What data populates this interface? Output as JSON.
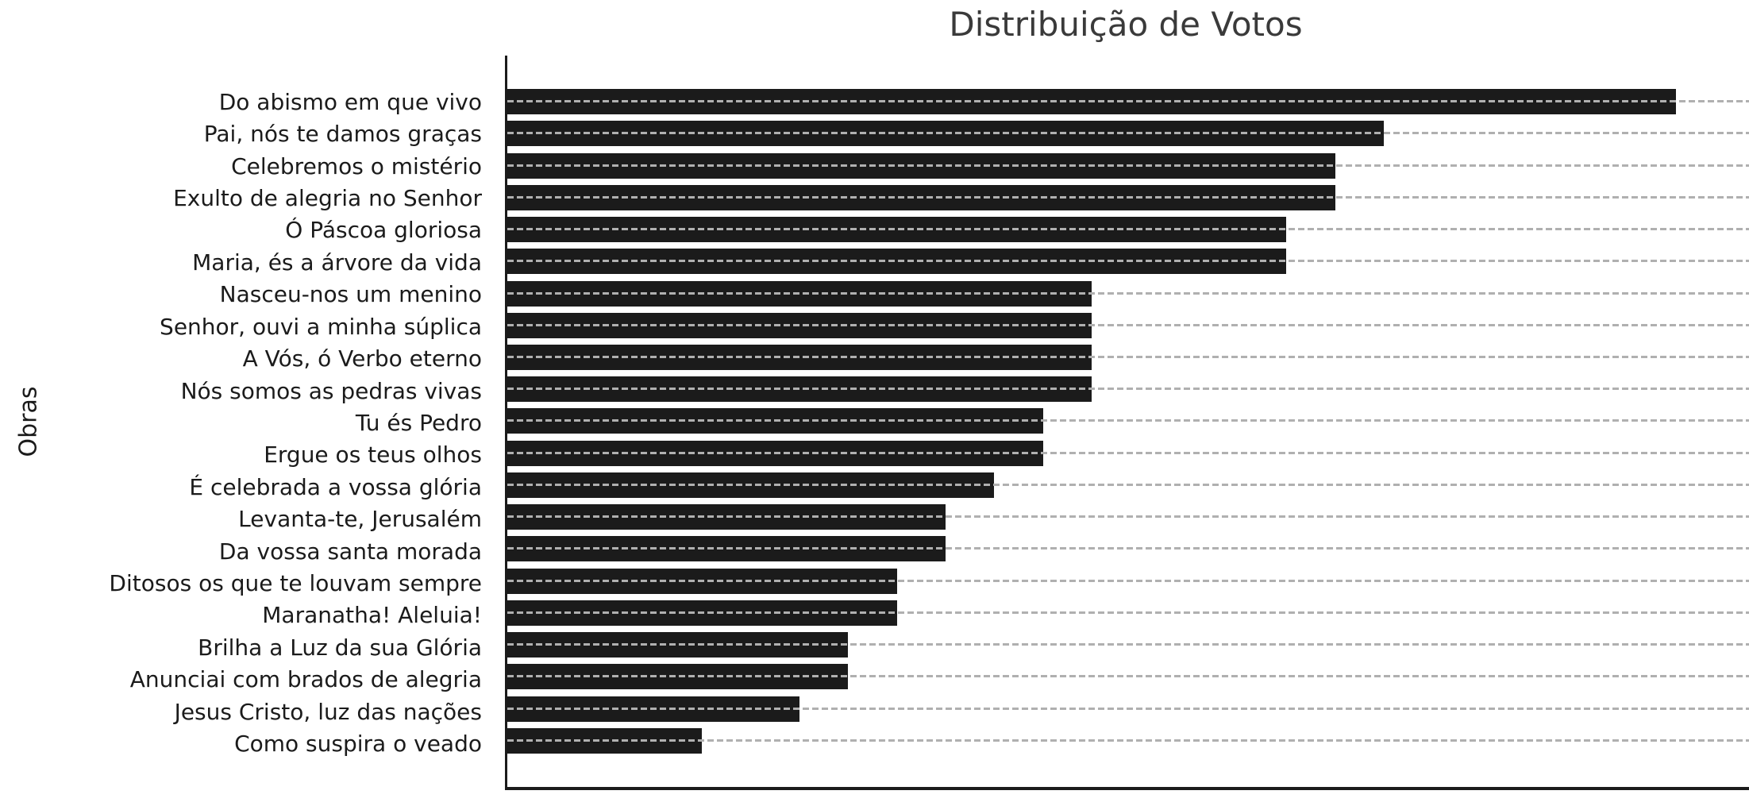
{
  "chart_data": {
    "type": "bar",
    "orientation": "horizontal",
    "title": "Distribuição de Votos",
    "xlabel": "",
    "ylabel": "Obras",
    "categories": [
      "Do abismo em que vivo",
      "Pai, nós te damos graças",
      "Celebremos o mistério",
      "Exulto de alegria no Senhor",
      "Ó Páscoa gloriosa",
      "Maria, és a árvore da vida",
      "Nasceu-nos um menino",
      "Senhor, ouvi a minha súplica",
      "A Vós, ó Verbo eterno",
      "Nós somos as pedras vivas",
      "Tu és Pedro",
      "Ergue os teus olhos",
      "É celebrada a vossa glória",
      "Levanta-te, Jerusalém",
      "Da vossa santa morada",
      "Ditosos os que te louvam sempre",
      "Maranatha! Aleluia!",
      "Brilha a Luz da sua Glória",
      "Anunciai com brados de alegria",
      "Jesus Cristo, luz das nações",
      "Como suspira o veado"
    ],
    "values": [
      24,
      18,
      17,
      17,
      16,
      16,
      12,
      12,
      12,
      12,
      11,
      11,
      10,
      9,
      9,
      8,
      8,
      7,
      7,
      6,
      4
    ],
    "xlim": [
      0,
      25.5
    ],
    "grid": "y-dashed",
    "legend": "none",
    "bar_color": "#1b1b1b",
    "grid_color": "#b0b0b0",
    "axis_color": "#1b1b1b"
  }
}
